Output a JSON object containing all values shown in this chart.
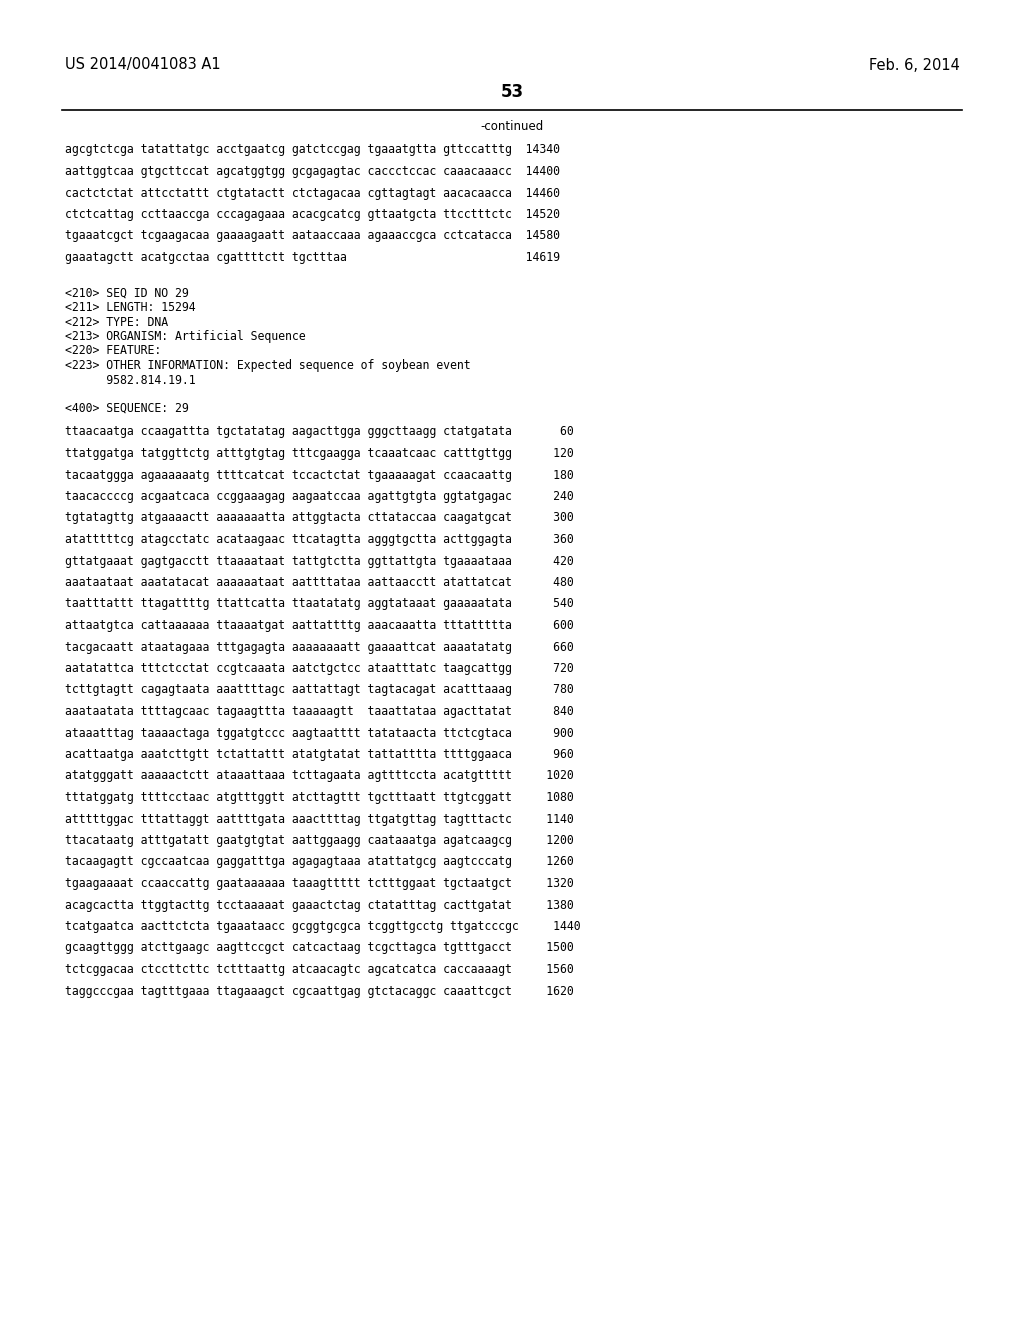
{
  "page_number": "53",
  "patent_number": "US 2014/0041083 A1",
  "patent_date": "Feb. 6, 2014",
  "continued_label": "-continued",
  "background_color": "#ffffff",
  "text_color": "#000000",
  "font_size_header": 10.5,
  "font_size_body": 8.5,
  "font_size_page_num": 12,
  "lines_top": [
    "agcgtctcga tatattatgc acctgaatcg gatctccgag tgaaatgtta gttccatttg  14340",
    "aattggtcaa gtgcttccat agcatggtgg gcgagagtac caccctccac caaacaaacc  14400",
    "cactctctat attcctattt ctgtatactt ctctagacaa cgttagtagt aacacaacca  14460",
    "ctctcattag ccttaaccga cccagagaaa acacgcatcg gttaatgcta ttcctttctc  14520",
    "tgaaatcgct tcgaagacaa gaaaagaatt aataaccaaa agaaaccgca cctcatacca  14580",
    "gaaatagctt acatgcctaa cgattttctt tgctttaa                          14619"
  ],
  "metadata_lines": [
    "<210> SEQ ID NO 29",
    "<211> LENGTH: 15294",
    "<212> TYPE: DNA",
    "<213> ORGANISM: Artificial Sequence",
    "<220> FEATURE:",
    "<223> OTHER INFORMATION: Expected sequence of soybean event",
    "      9582.814.19.1"
  ],
  "sequence_label": "<400> SEQUENCE: 29",
  "sequence_lines": [
    "ttaacaatga ccaagattta tgctatatag aagacttgga gggcttaagg ctatgatata       60",
    "ttatggatga tatggttctg atttgtgtag tttcgaagga tcaaatcaac catttgttgg      120",
    "tacaatggga agaaaaaatg ttttcatcat tccactctat tgaaaaagat ccaacaattg      180",
    "taacaccccg acgaatcaca ccggaaagag aagaatccaa agattgtgta ggtatgagac      240",
    "tgtatagttg atgaaaactt aaaaaaatta attggtacta cttataccaa caagatgcat      300",
    "atatttttcg atagcctatc acataagaac ttcatagtta agggtgctta acttggagta      360",
    "gttatgaaat gagtgacctt ttaaaataat tattgtctta ggttattgta tgaaaataaa      420",
    "aaataataat aaatatacat aaaaaataat aattttataa aattaacctt atattatcat      480",
    "taatttattt ttagattttg ttattcatta ttaatatatg aggtataaat gaaaaatata      540",
    "attaatgtca cattaaaaaa ttaaaatgat aattattttg aaacaaatta tttattttta      600",
    "tacgacaatt ataatagaaa tttgagagta aaaaaaaatt gaaaattcat aaaatatatg      660",
    "aatatattca tttctcctat ccgtcaaata aatctgctcc ataatttatc taagcattgg      720",
    "tcttgtagtt cagagtaata aaattttagc aattattagt tagtacagat acatttaaag      780",
    "aaataatata ttttagcaac tagaagttta taaaaagtt  taaattataa agacttatat      840",
    "ataaatttag taaaactaga tggatgtccc aagtaatttt tatataacta ttctcgtaca      900",
    "acattaatga aaatcttgtt tctattattt atatgtatat tattatttta ttttggaaca      960",
    "atatgggatt aaaaactctt ataaattaaa tcttagaata agttttccta acatgttttt     1020",
    "tttatggatg ttttcctaac atgtttggtt atcttagttt tgctttaatt ttgtcggatt     1080",
    "atttttggac tttattaggt aattttgata aaacttttag ttgatgttag tagtttactc     1140",
    "ttacataatg atttgatatt gaatgtgtat aattggaagg caataaatga agatcaagcg     1200",
    "tacaagagtt cgccaatcaa gaggatttga agagagtaaa atattatgcg aagtcccatg     1260",
    "tgaagaaaat ccaaccattg gaataaaaaa taaagttttt tctttggaat tgctaatgct     1320",
    "acagcactta ttggtacttg tcctaaaaat gaaactctag ctatatttag cacttgatat     1380",
    "tcatgaatca aacttctcta tgaaataacc gcggtgcgca tcggttgcctg ttgatcccgc     1440",
    "gcaagttggg atcttgaagc aagttccgct catcactaag tcgcttagca tgtttgacct     1500",
    "tctcggacaa ctccttcttc tctttaattg atcaacagtc agcatcatca caccaaaagt     1560",
    "taggcccgaa tagtttgaaa ttagaaagct cgcaattgag gtctacaggc caaattcgct     1620"
  ]
}
